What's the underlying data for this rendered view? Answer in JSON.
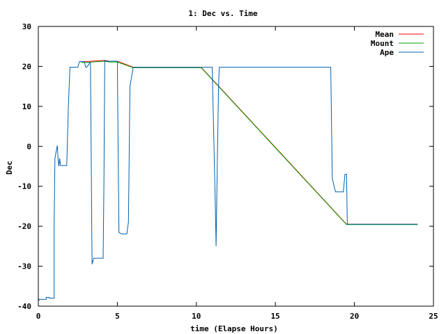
{
  "chart_data": {
    "type": "line",
    "title": "1: Dec vs. Time",
    "xlabel": "time (Elapse Hours)",
    "ylabel": "Dec",
    "xlim": [
      0,
      25
    ],
    "ylim": [
      -40,
      30
    ],
    "xticks": [
      0,
      5,
      10,
      15,
      20,
      25
    ],
    "yticks": [
      -40,
      -30,
      -20,
      -10,
      0,
      10,
      20,
      30
    ],
    "grid": false,
    "legend_position": "top-right",
    "series": [
      {
        "name": "Mean",
        "color": "#ff0000",
        "x": [
          2.7,
          3.0,
          4.2,
          4.5,
          5.0,
          6.0,
          10.3,
          19.5,
          24.0
        ],
        "y": [
          21.2,
          21.2,
          21.5,
          21.3,
          21.3,
          19.8,
          19.8,
          -19.5,
          -19.5
        ]
      },
      {
        "name": "Mount",
        "color": "#00a000",
        "x": [
          2.7,
          3.0,
          4.2,
          4.5,
          5.0,
          6.0,
          10.3,
          19.5,
          24.0
        ],
        "y": [
          21.0,
          21.0,
          21.3,
          21.1,
          21.1,
          19.7,
          19.7,
          -19.6,
          -19.6
        ]
      },
      {
        "name": "Ape",
        "color": "#0060ad",
        "x": [
          0.0,
          0.0,
          0.05,
          0.1,
          0.5,
          0.5,
          0.7,
          0.7,
          1.0,
          1.0,
          1.05,
          1.2,
          1.25,
          1.3,
          1.35,
          1.4,
          1.5,
          1.8,
          1.9,
          2.0,
          2.1,
          2.5,
          2.55,
          2.6,
          2.9,
          3.0,
          3.05,
          3.2,
          3.25,
          3.3,
          3.35,
          3.4,
          3.5,
          3.6,
          4.1,
          4.15,
          4.2,
          4.3,
          4.5,
          5.0,
          5.05,
          5.1,
          5.2,
          5.3,
          5.6,
          5.7,
          5.8,
          6.0,
          6.05,
          10.0,
          10.3,
          11.0,
          11.2,
          11.25,
          11.3,
          11.4,
          11.45,
          11.55,
          11.8,
          12.0,
          15.0,
          18.5,
          18.6,
          18.8,
          19.3,
          19.4,
          19.5,
          19.55,
          19.6,
          19.65,
          20.0,
          22.0,
          24.0
        ],
        "y": [
          -18.0,
          -38.0,
          -38.5,
          -38.3,
          -38.3,
          -37.8,
          -37.8,
          -38.0,
          -38.0,
          -20.0,
          -3.0,
          0.2,
          -3.0,
          -5.0,
          -3.0,
          -4.8,
          -4.8,
          -4.8,
          10.0,
          19.8,
          19.8,
          19.8,
          20.5,
          21.2,
          21.2,
          19.8,
          19.8,
          20.5,
          21.0,
          20.8,
          -5.0,
          -29.5,
          -28.0,
          -28.0,
          -28.0,
          -10.0,
          21.5,
          21.3,
          21.3,
          21.3,
          0.0,
          -21.5,
          -21.8,
          -21.9,
          -21.9,
          -19.0,
          15.0,
          19.8,
          19.8,
          19.8,
          19.8,
          19.8,
          -15.0,
          -25.0,
          -10.0,
          15.0,
          19.8,
          19.8,
          19.8,
          19.8,
          19.8,
          19.8,
          -8.0,
          -11.4,
          -11.4,
          -7.0,
          -7.0,
          -19.5,
          -19.5,
          -19.5,
          -19.5,
          -19.5,
          -19.5
        ]
      }
    ]
  }
}
